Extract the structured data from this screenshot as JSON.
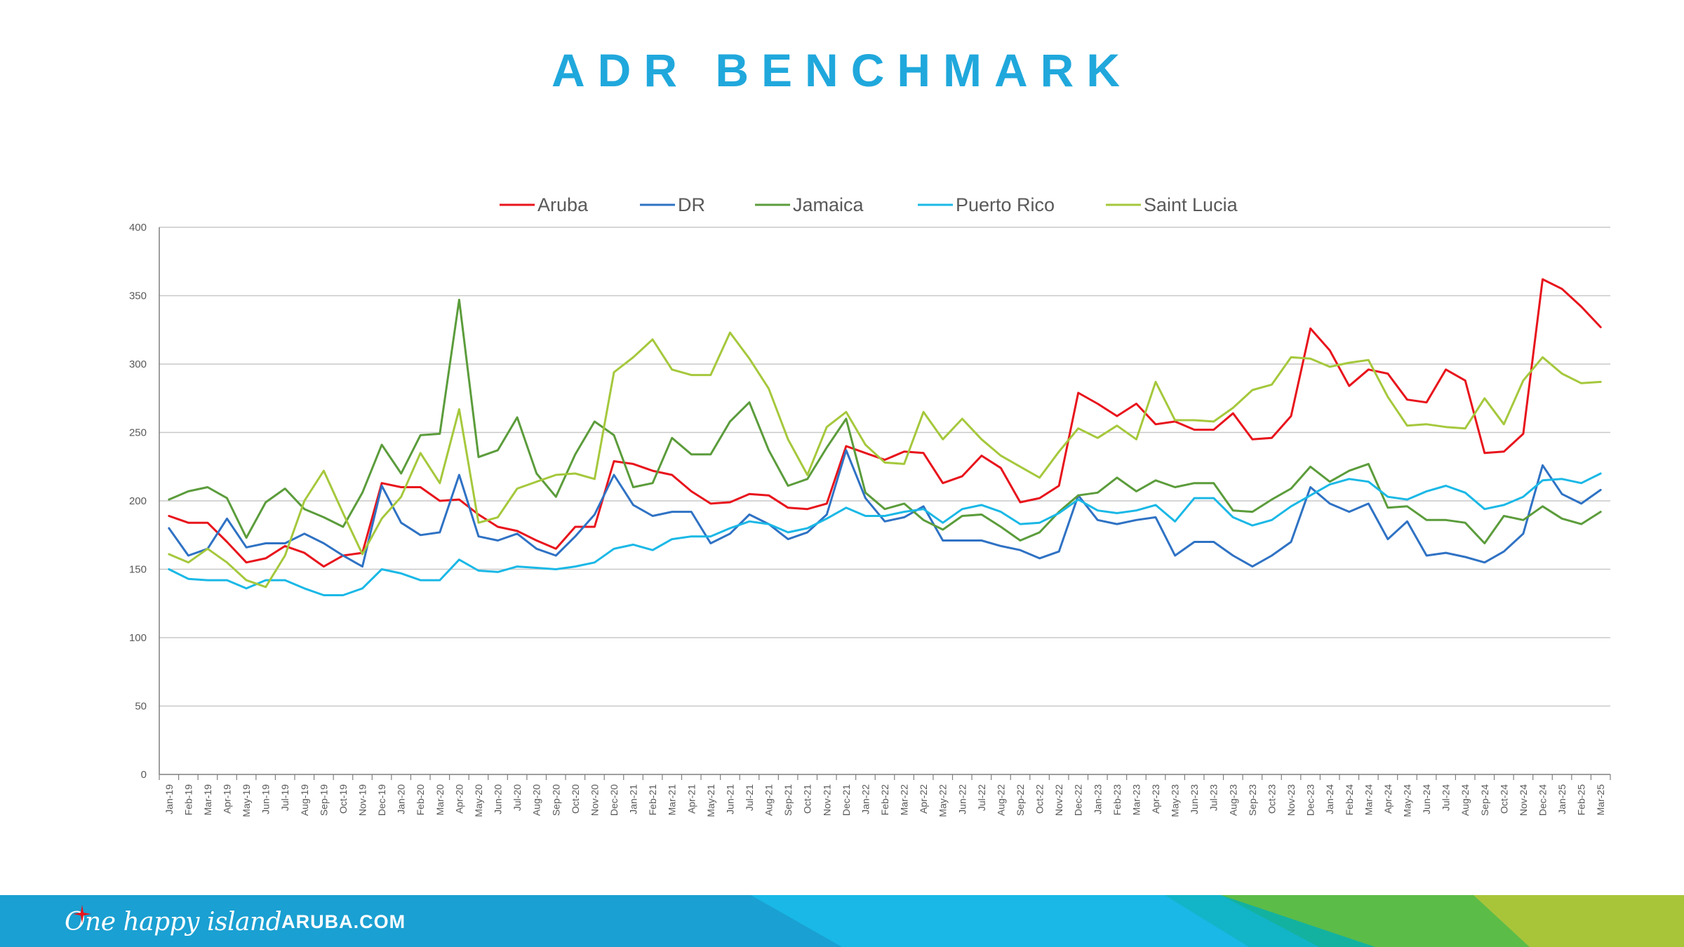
{
  "page": {
    "title": "ADR BENCHMARK"
  },
  "colors": {
    "title": "#20a8dc",
    "Aruba": "#e8141c",
    "DR": "#2f72c4",
    "Jamaica": "#5b9c3b",
    "Puerto Rico": "#1ab8e6",
    "Saint Lucia": "#a5c83c"
  },
  "footer": {
    "tagline": "One happy island",
    "site": "ARUBA.COM",
    "icon": "compass-star-icon"
  },
  "chart_data": {
    "type": "line",
    "title": "ADR BENCHMARK",
    "xlabel": "",
    "ylabel": "",
    "ylim": [
      0,
      400
    ],
    "yticks": [
      0,
      50,
      100,
      150,
      200,
      250,
      300,
      350,
      400
    ],
    "grid": true,
    "legend_position": "top-center",
    "categories": [
      "Jan-19",
      "Feb-19",
      "Mar-19",
      "Apr-19",
      "May-19",
      "Jun-19",
      "Jul-19",
      "Aug-19",
      "Sep-19",
      "Oct-19",
      "Nov-19",
      "Dec-19",
      "Jan-20",
      "Feb-20",
      "Mar-20",
      "Apr-20",
      "May-20",
      "Jun-20",
      "Jul-20",
      "Aug-20",
      "Sep-20",
      "Oct-20",
      "Nov-20",
      "Dec-20",
      "Jan-21",
      "Feb-21",
      "Mar-21",
      "Apr-21",
      "May-21",
      "Jun-21",
      "Jul-21",
      "Aug-21",
      "Sep-21",
      "Oct-21",
      "Nov-21",
      "Dec-21",
      "Jan-22",
      "Feb-22",
      "Mar-22",
      "Apr-22",
      "May-22",
      "Jun-22",
      "Jul-22",
      "Aug-22",
      "Sep-22",
      "Oct-22",
      "Nov-22",
      "Dec-22",
      "Jan-23",
      "Feb-23",
      "Mar-23",
      "Apr-23",
      "May-23",
      "Jun-23",
      "Jul-23",
      "Aug-23",
      "Sep-23",
      "Oct-23",
      "Nov-23",
      "Dec-23",
      "Jan-24",
      "Feb-24",
      "Mar-24",
      "Apr-24",
      "May-24",
      "Jun-24",
      "Jul-24",
      "Aug-24",
      "Sep-24",
      "Oct-24",
      "Nov-24",
      "Dec-24",
      "Jan-25",
      "Feb-25",
      "Mar-25"
    ],
    "series": [
      {
        "name": "Aruba",
        "values": [
          189,
          184,
          184,
          170,
          155,
          158,
          167,
          162,
          152,
          160,
          162,
          213,
          210,
          210,
          200,
          201,
          190,
          181,
          178,
          171,
          165,
          181,
          181,
          229,
          227,
          222,
          219,
          207,
          198,
          199,
          205,
          204,
          195,
          194,
          198,
          240,
          235,
          230,
          236,
          235,
          213,
          218,
          233,
          224,
          199,
          202,
          211,
          279,
          271,
          262,
          271,
          256,
          258,
          252,
          252,
          264,
          245,
          246,
          262,
          326,
          310,
          284,
          296,
          293,
          274,
          272,
          296,
          288,
          235,
          236,
          249,
          362,
          355,
          342,
          327
        ]
      },
      {
        "name": "DR",
        "values": [
          180,
          160,
          165,
          187,
          166,
          169,
          169,
          176,
          169,
          160,
          152,
          211,
          184,
          175,
          177,
          219,
          174,
          171,
          176,
          165,
          160,
          174,
          190,
          219,
          197,
          189,
          192,
          192,
          169,
          176,
          190,
          183,
          172,
          177,
          190,
          237,
          202,
          185,
          188,
          196,
          171,
          171,
          171,
          167,
          164,
          158,
          163,
          204,
          186,
          183,
          186,
          188,
          160,
          170,
          170,
          160,
          152,
          160,
          170,
          210,
          198,
          192,
          198,
          172,
          185,
          160,
          162,
          159,
          155,
          163,
          176,
          226,
          205,
          198,
          208
        ]
      },
      {
        "name": "Jamaica",
        "values": [
          201,
          207,
          210,
          202,
          173,
          199,
          209,
          194,
          188,
          181,
          206,
          241,
          220,
          248,
          249,
          347,
          232,
          237,
          261,
          220,
          203,
          234,
          258,
          248,
          210,
          213,
          246,
          234,
          234,
          258,
          272,
          237,
          211,
          216,
          239,
          260,
          206,
          194,
          198,
          186,
          179,
          189,
          190,
          181,
          171,
          177,
          192,
          204,
          206,
          217,
          207,
          215,
          210,
          213,
          213,
          193,
          192,
          201,
          209,
          225,
          214,
          222,
          227,
          195,
          196,
          186,
          186,
          184,
          169,
          189,
          186,
          196,
          187,
          183,
          192
        ]
      },
      {
        "name": "Puerto Rico",
        "values": [
          150,
          143,
          142,
          142,
          136,
          142,
          142,
          136,
          131,
          131,
          136,
          150,
          147,
          142,
          142,
          157,
          149,
          148,
          152,
          151,
          150,
          152,
          155,
          165,
          168,
          164,
          172,
          174,
          174,
          180,
          185,
          183,
          177,
          180,
          187,
          195,
          189,
          189,
          192,
          194,
          184,
          194,
          197,
          192,
          183,
          184,
          191,
          201,
          193,
          191,
          193,
          197,
          185,
          202,
          202,
          188,
          182,
          186,
          196,
          204,
          212,
          216,
          214,
          203,
          201,
          207,
          211,
          206,
          194,
          197,
          203,
          215,
          216,
          213,
          220
        ]
      },
      {
        "name": "Saint Lucia",
        "values": [
          161,
          155,
          165,
          155,
          142,
          137,
          160,
          200,
          222,
          191,
          161,
          187,
          203,
          235,
          213,
          267,
          184,
          188,
          209,
          214,
          219,
          220,
          216,
          294,
          305,
          318,
          296,
          292,
          292,
          323,
          304,
          282,
          245,
          219,
          254,
          265,
          241,
          228,
          227,
          265,
          245,
          260,
          245,
          233,
          225,
          217,
          236,
          253,
          246,
          255,
          245,
          287,
          259,
          259,
          258,
          268,
          281,
          285,
          305,
          304,
          298,
          301,
          303,
          276,
          255,
          256,
          254,
          253,
          275,
          256,
          288,
          305,
          293,
          286,
          287
        ]
      }
    ]
  }
}
